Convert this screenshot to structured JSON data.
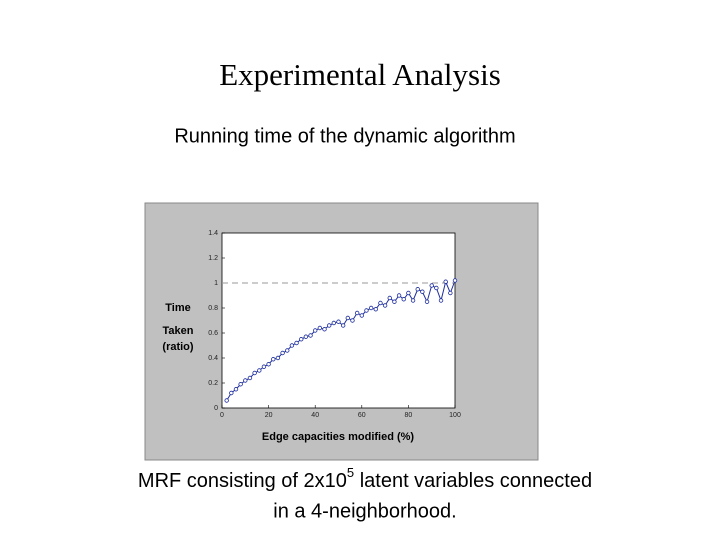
{
  "chart_data": {
    "type": "line",
    "title": "Experimental Analysis",
    "subtitle": "Running time of the dynamic algorithm",
    "caption": [
      "MRF consisting of 2x10",
      "5",
      " latent variables connected",
      "in a 4-neighborhood."
    ],
    "xlabel": "Edge capacities modified (%)",
    "ylabel": [
      "Time",
      "Taken",
      "(ratio)"
    ],
    "x": [
      2,
      4,
      6,
      8,
      10,
      12,
      14,
      16,
      18,
      20,
      22,
      24,
      26,
      28,
      30,
      32,
      34,
      36,
      38,
      40,
      42,
      44,
      46,
      48,
      50,
      52,
      54,
      56,
      58,
      60,
      62,
      64,
      66,
      68,
      70,
      72,
      74,
      76,
      78,
      80,
      82,
      84,
      86,
      88,
      90,
      92,
      94,
      96,
      98,
      100
    ],
    "values": [
      0.06,
      0.12,
      0.15,
      0.19,
      0.22,
      0.24,
      0.28,
      0.3,
      0.33,
      0.35,
      0.39,
      0.4,
      0.44,
      0.46,
      0.5,
      0.52,
      0.55,
      0.57,
      0.58,
      0.62,
      0.64,
      0.63,
      0.66,
      0.68,
      0.69,
      0.66,
      0.72,
      0.7,
      0.76,
      0.74,
      0.78,
      0.8,
      0.79,
      0.84,
      0.82,
      0.88,
      0.85,
      0.9,
      0.87,
      0.92,
      0.86,
      0.95,
      0.93,
      0.85,
      0.98,
      0.96,
      0.86,
      1.01,
      0.92,
      1.02
    ],
    "color": "#1f2f9f",
    "reference_line": 1,
    "xlim": [
      0,
      100
    ],
    "xticks": [
      0,
      20,
      40,
      60,
      80,
      100
    ],
    "ylim": [
      0,
      1.4
    ],
    "yticks": [
      0,
      0.2,
      0.4,
      0.6,
      0.8,
      1,
      1.2,
      1.4
    ]
  }
}
